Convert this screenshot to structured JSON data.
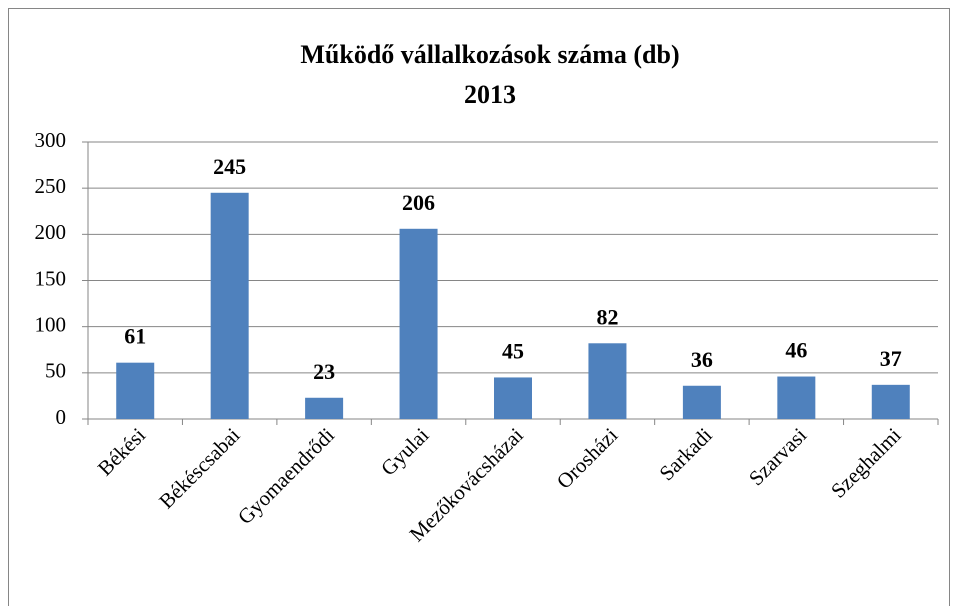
{
  "chart_data": {
    "type": "bar",
    "title": "Működő vállalkozások száma (db)",
    "subtitle": "2013",
    "categories": [
      "Békési",
      "Békéscsabai",
      "Gyomaendrődi",
      "Gyulai",
      "Mezőkovácsházai",
      "Orosházi",
      "Sarkadi",
      "Szarvasi",
      "Szeghalmi"
    ],
    "values": [
      61,
      245,
      23,
      206,
      45,
      82,
      36,
      46,
      37
    ],
    "color": "#4f81bd",
    "ylim": [
      0,
      300
    ],
    "yticks": [
      0,
      50,
      100,
      150,
      200,
      250,
      300
    ],
    "grid": true
  }
}
